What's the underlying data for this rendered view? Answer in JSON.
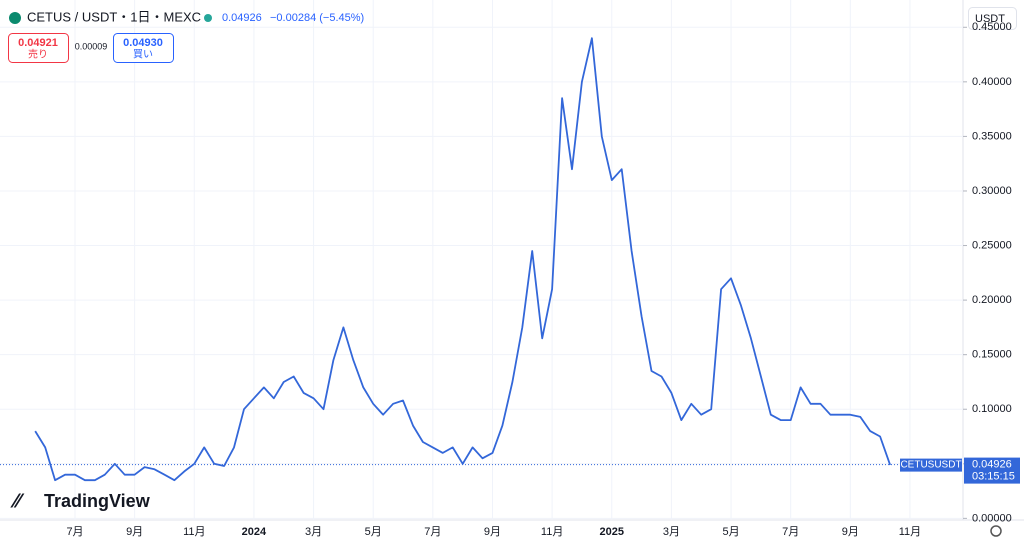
{
  "header": {
    "symbol": "CETUS / USDT・1日・MEXC",
    "price": "0.04926",
    "change": "−0.00284 (−5.45%)",
    "sell_price": "0.04921",
    "sell_label": "売り",
    "spread": "0.00009",
    "buy_price": "0.04930",
    "buy_label": "買い",
    "currency": "USDT",
    "logo": "TradingView"
  },
  "chart_data": {
    "type": "line",
    "color": "#3367d9",
    "grid": true,
    "line_label": "CETUSUSDT",
    "last_price": 0.04926,
    "countdown": "03:15:15",
    "categories": [
      null,
      null,
      null,
      null,
      "7月",
      null,
      null,
      null,
      null,
      null,
      "9月",
      null,
      null,
      null,
      null,
      null,
      "11月",
      null,
      null,
      null,
      null,
      null,
      "2024",
      null,
      null,
      null,
      null,
      null,
      "3月",
      null,
      null,
      null,
      null,
      null,
      "5月",
      null,
      null,
      null,
      null,
      null,
      "7月",
      null,
      null,
      null,
      null,
      null,
      "9月",
      null,
      null,
      null,
      null,
      null,
      "11月",
      null,
      null,
      null,
      null,
      null,
      "2025",
      null,
      null,
      null,
      null,
      null,
      "3月",
      null,
      null,
      null,
      null,
      null,
      "5月",
      null,
      null,
      null,
      null,
      null,
      "7月",
      null,
      null,
      null,
      null,
      null,
      "9月",
      null,
      null,
      null,
      null,
      null,
      "11月"
    ],
    "values": [
      0.08,
      0.065,
      0.035,
      0.04,
      0.04,
      0.035,
      0.035,
      0.04,
      0.05,
      0.04,
      0.04,
      0.047,
      0.045,
      0.04,
      0.035,
      0.043,
      0.05,
      0.065,
      0.05,
      0.048,
      0.065,
      0.1,
      0.11,
      0.12,
      0.11,
      0.125,
      0.13,
      0.115,
      0.11,
      0.1,
      0.145,
      0.175,
      0.145,
      0.12,
      0.105,
      0.095,
      0.105,
      0.108,
      0.085,
      0.07,
      0.065,
      0.06,
      0.065,
      0.05,
      0.065,
      0.055,
      0.06,
      0.085,
      0.125,
      0.175,
      0.245,
      0.165,
      0.21,
      0.385,
      0.32,
      0.4,
      0.44,
      0.35,
      0.31,
      0.32,
      0.245,
      0.185,
      0.135,
      0.13,
      0.115,
      0.09,
      0.105,
      0.095,
      0.1,
      0.21,
      0.22,
      0.195,
      0.165,
      0.13,
      0.095,
      0.09,
      0.09,
      0.12,
      0.105,
      0.105,
      0.095,
      0.095,
      0.095,
      0.093,
      0.08,
      0.075,
      0.049,
      null,
      null
    ],
    "ylim": [
      -0.0015,
      0.475
    ],
    "yticks": [
      {
        "value": 0,
        "label": "0.00000"
      },
      {
        "value": 0.05,
        "label": "0.05000"
      },
      {
        "value": 0.1,
        "label": "0.10000"
      },
      {
        "value": 0.15,
        "label": "0.15000"
      },
      {
        "value": 0.2,
        "label": "0.20000"
      },
      {
        "value": 0.25,
        "label": "0.25000"
      },
      {
        "value": 0.3,
        "label": "0.30000"
      },
      {
        "value": 0.35,
        "label": "0.35000"
      },
      {
        "value": 0.4,
        "label": "0.40000"
      },
      {
        "value": 0.45,
        "label": "0.45000"
      }
    ]
  }
}
